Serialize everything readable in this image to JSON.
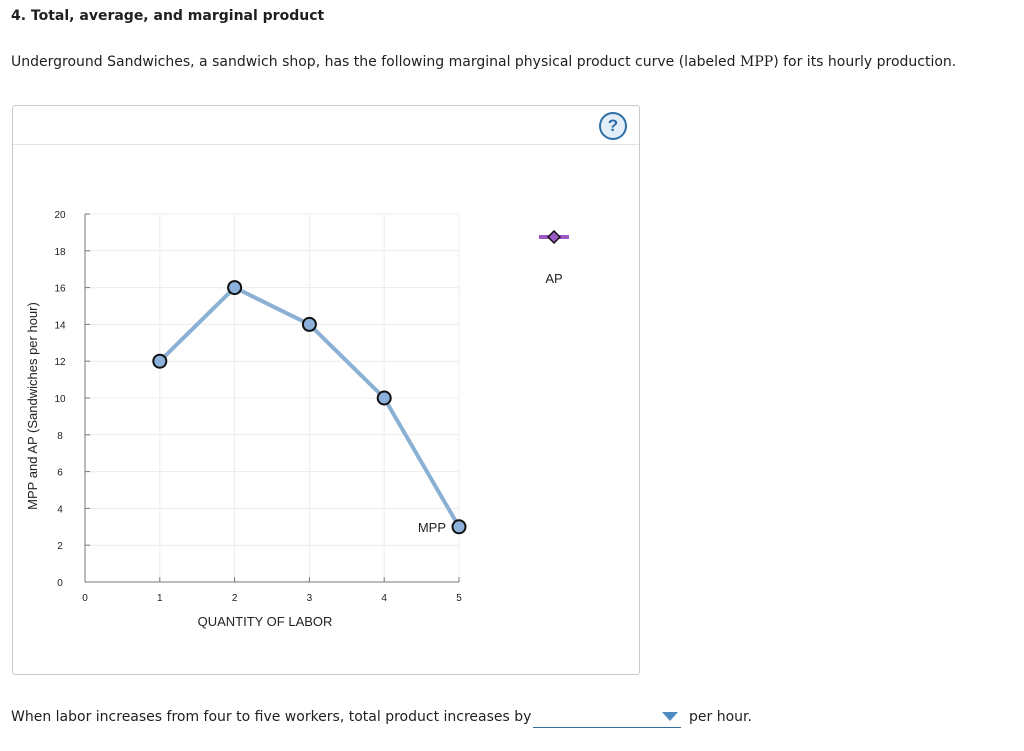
{
  "heading": "4. Total, average, and marginal product",
  "intro": {
    "before": "Underground Sandwiches, a sandwich shop, has the following marginal physical product curve (labeled ",
    "term": "MPP",
    "after": ") for its hourly production."
  },
  "help_label": "?",
  "chart_data": {
    "type": "line",
    "xlabel": "QUANTITY OF LABOR",
    "ylabel": "MPP and AP (Sandwiches per hour)",
    "xlim": [
      0,
      5
    ],
    "ylim": [
      0,
      20
    ],
    "x_ticks": [
      0,
      1,
      2,
      3,
      4,
      5
    ],
    "y_ticks": [
      0,
      2,
      4,
      6,
      8,
      10,
      12,
      14,
      16,
      18,
      20
    ],
    "grid": true,
    "series": [
      {
        "name": "MPP",
        "x": [
          1,
          2,
          3,
          4,
          5
        ],
        "y": [
          12,
          16,
          14,
          10,
          3
        ],
        "line_color": "#8ab1d4",
        "marker_color": "#8cb2dc"
      }
    ],
    "palette": [
      {
        "name": "AP",
        "line_color": "#9b59c5",
        "marker_color": "#9b59c5",
        "marker": "diamond"
      }
    ]
  },
  "question": {
    "text": "When labor increases from four to five workers, total product increases by",
    "selected": "",
    "suffix": "per hour."
  }
}
